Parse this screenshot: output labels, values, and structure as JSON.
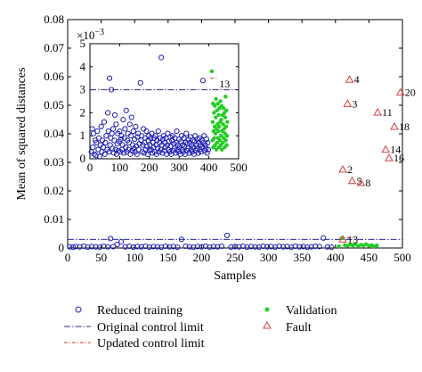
{
  "chart_data": {
    "type": "scatter",
    "main": {
      "xlabel": "Samples",
      "ylabel": "Mean of squared distances",
      "xlim": [
        0,
        500
      ],
      "ylim": [
        0,
        0.08
      ],
      "xticks": [
        "0",
        "50",
        "100",
        "150",
        "200",
        "250",
        "300",
        "350",
        "400",
        "450",
        "500"
      ],
      "yticks": [
        "0",
        "0.01",
        "0.02",
        "0.03",
        "0.04",
        "0.05",
        "0.06",
        "0.07",
        "0.08"
      ],
      "original_limit": 0.003,
      "updated_limit": 0.0035,
      "updated_limit_x": [
        405,
        430
      ],
      "reduced_training": [
        [
          3,
          0.0004
        ],
        [
          8,
          0.0003
        ],
        [
          12,
          0.0005
        ],
        [
          18,
          0.0004
        ],
        [
          24,
          0.0006
        ],
        [
          30,
          0.0003
        ],
        [
          36,
          0.0005
        ],
        [
          42,
          0.0004
        ],
        [
          48,
          0.0003
        ],
        [
          54,
          0.0006
        ],
        [
          60,
          0.0004
        ],
        [
          64,
          0.0033
        ],
        [
          68,
          0.0005
        ],
        [
          74,
          0.0012
        ],
        [
          80,
          0.0022
        ],
        [
          86,
          0.0004
        ],
        [
          92,
          0.0006
        ],
        [
          98,
          0.0003
        ],
        [
          104,
          0.0005
        ],
        [
          110,
          0.0004
        ],
        [
          116,
          0.0006
        ],
        [
          122,
          0.0003
        ],
        [
          128,
          0.0005
        ],
        [
          134,
          0.0004
        ],
        [
          140,
          0.0003
        ],
        [
          146,
          0.0006
        ],
        [
          152,
          0.0004
        ],
        [
          158,
          0.0005
        ],
        [
          164,
          0.0003
        ],
        [
          170,
          0.003
        ],
        [
          176,
          0.0006
        ],
        [
          182,
          0.0004
        ],
        [
          188,
          0.0003
        ],
        [
          194,
          0.0005
        ],
        [
          200,
          0.0004
        ],
        [
          206,
          0.0006
        ],
        [
          212,
          0.0003
        ],
        [
          218,
          0.0005
        ],
        [
          224,
          0.0004
        ],
        [
          230,
          0.0006
        ],
        [
          238,
          0.0044
        ],
        [
          244,
          0.0003
        ],
        [
          250,
          0.0005
        ],
        [
          256,
          0.0004
        ],
        [
          262,
          0.0006
        ],
        [
          268,
          0.0003
        ],
        [
          274,
          0.0005
        ],
        [
          280,
          0.0004
        ],
        [
          286,
          0.0003
        ],
        [
          292,
          0.0006
        ],
        [
          298,
          0.0004
        ],
        [
          304,
          0.0005
        ],
        [
          310,
          0.0003
        ],
        [
          316,
          0.0006
        ],
        [
          322,
          0.0004
        ],
        [
          328,
          0.0005
        ],
        [
          334,
          0.0003
        ],
        [
          340,
          0.0006
        ],
        [
          346,
          0.0004
        ],
        [
          352,
          0.0005
        ],
        [
          358,
          0.0003
        ],
        [
          364,
          0.0004
        ],
        [
          370,
          0.0006
        ],
        [
          376,
          0.0005
        ],
        [
          382,
          0.0035
        ],
        [
          388,
          0.0004
        ],
        [
          394,
          0.0003
        ]
      ],
      "validation": [
        [
          405,
          0.0006
        ],
        [
          410,
          0.0035
        ],
        [
          414,
          0.001
        ],
        [
          418,
          0.0008
        ],
        [
          422,
          0.0012
        ],
        [
          426,
          0.0009
        ],
        [
          430,
          0.0014
        ],
        [
          434,
          0.0007
        ],
        [
          438,
          0.0011
        ],
        [
          442,
          0.0009
        ],
        [
          446,
          0.0013
        ],
        [
          450,
          0.0008
        ],
        [
          454,
          0.001
        ],
        [
          458,
          0.0006
        ],
        [
          462,
          0.0009
        ]
      ],
      "fault": [
        {
          "x": 411,
          "y": 0.0275,
          "label": "2"
        },
        {
          "x": 418,
          "y": 0.0505,
          "label": "3"
        },
        {
          "x": 421,
          "y": 0.059,
          "label": "4"
        },
        {
          "x": 425,
          "y": 0.0235,
          "label": "5"
        },
        {
          "x": 438,
          "y": 0.0228,
          "label": "8"
        },
        {
          "x": 463,
          "y": 0.0475,
          "label": "11"
        },
        {
          "x": 411,
          "y": 0.003,
          "label": "13"
        },
        {
          "x": 475,
          "y": 0.0345,
          "label": "14"
        },
        {
          "x": 480,
          "y": 0.0315,
          "label": "16"
        },
        {
          "x": 488,
          "y": 0.0425,
          "label": "18"
        },
        {
          "x": 497,
          "y": 0.0545,
          "label": "20"
        }
      ]
    },
    "inset": {
      "multiplier": "×10",
      "exponent": "−3",
      "xlim": [
        0,
        500
      ],
      "ylim": [
        0,
        5
      ],
      "xticks": [
        "0",
        "100",
        "200",
        "300",
        "400",
        "500"
      ],
      "yticks": [
        "0",
        "1",
        "2",
        "3",
        "4",
        "5"
      ],
      "original_limit": 3.0,
      "updated_limit": 3.5,
      "updated_limit_x": [
        405,
        430
      ],
      "label_13": "13",
      "reduced_training": [
        [
          5,
          0.3
        ],
        [
          8,
          1.3
        ],
        [
          10,
          0.5
        ],
        [
          12,
          1.1
        ],
        [
          14,
          0.2
        ],
        [
          18,
          0.8
        ],
        [
          20,
          0.15
        ],
        [
          22,
          0.7
        ],
        [
          25,
          1.2
        ],
        [
          28,
          0.4
        ],
        [
          30,
          0.9
        ],
        [
          33,
          0.1
        ],
        [
          35,
          0.6
        ],
        [
          38,
          1.4
        ],
        [
          40,
          0.3
        ],
        [
          42,
          0.8
        ],
        [
          45,
          0.5
        ],
        [
          48,
          1.6
        ],
        [
          50,
          0.2
        ],
        [
          52,
          0.7
        ],
        [
          55,
          1.0
        ],
        [
          58,
          0.4
        ],
        [
          60,
          2.0
        ],
        [
          62,
          1.2
        ],
        [
          64,
          0.3
        ],
        [
          66,
          3.5
        ],
        [
          68,
          0.6
        ],
        [
          70,
          0.9
        ],
        [
          72,
          3.0
        ],
        [
          74,
          1.1
        ],
        [
          76,
          0.45
        ],
        [
          78,
          1.3
        ],
        [
          80,
          0.25
        ],
        [
          82,
          0.8
        ],
        [
          84,
          1.9
        ],
        [
          86,
          0.4
        ],
        [
          88,
          1.5
        ],
        [
          90,
          0.2
        ],
        [
          92,
          0.65
        ],
        [
          94,
          1.1
        ],
        [
          96,
          0.35
        ],
        [
          98,
          0.75
        ],
        [
          100,
          1.2
        ],
        [
          102,
          0.3
        ],
        [
          104,
          0.85
        ],
        [
          106,
          1.0
        ],
        [
          108,
          0.4
        ],
        [
          110,
          0.6
        ],
        [
          112,
          1.7
        ],
        [
          114,
          0.25
        ],
        [
          116,
          0.9
        ],
        [
          118,
          1.3
        ],
        [
          120,
          0.5
        ],
        [
          122,
          2.1
        ],
        [
          124,
          0.3
        ],
        [
          126,
          0.8
        ],
        [
          128,
          1.1
        ],
        [
          130,
          0.4
        ],
        [
          132,
          0.7
        ],
        [
          134,
          1.5
        ],
        [
          136,
          0.2
        ],
        [
          138,
          1.0
        ],
        [
          140,
          1.8
        ],
        [
          142,
          0.35
        ],
        [
          144,
          0.6
        ],
        [
          146,
          1.2
        ],
        [
          148,
          0.45
        ],
        [
          150,
          0.85
        ],
        [
          152,
          0.3
        ],
        [
          154,
          1.4
        ],
        [
          156,
          0.55
        ],
        [
          158,
          0.2
        ],
        [
          160,
          0.95
        ],
        [
          162,
          1.1
        ],
        [
          164,
          0.4
        ],
        [
          166,
          0.65
        ],
        [
          170,
          3.3
        ],
        [
          172,
          0.8
        ],
        [
          174,
          1.0
        ],
        [
          176,
          0.3
        ],
        [
          178,
          0.6
        ],
        [
          180,
          1.3
        ],
        [
          182,
          0.25
        ],
        [
          184,
          0.7
        ],
        [
          186,
          0.9
        ],
        [
          188,
          0.4
        ],
        [
          190,
          1.2
        ],
        [
          192,
          0.55
        ],
        [
          194,
          0.2
        ],
        [
          196,
          0.8
        ],
        [
          198,
          1.0
        ],
        [
          200,
          0.35
        ],
        [
          202,
          0.6
        ],
        [
          204,
          0.9
        ],
        [
          206,
          0.4
        ],
        [
          208,
          1.1
        ],
        [
          210,
          0.25
        ],
        [
          212,
          0.7
        ],
        [
          214,
          0.5
        ],
        [
          216,
          0.9
        ],
        [
          218,
          0.3
        ],
        [
          220,
          1.0
        ],
        [
          222,
          0.6
        ],
        [
          224,
          0.2
        ],
        [
          226,
          0.8
        ],
        [
          228,
          0.45
        ],
        [
          230,
          1.2
        ],
        [
          232,
          0.3
        ],
        [
          234,
          0.7
        ],
        [
          236,
          0.9
        ],
        [
          238,
          0.4
        ],
        [
          240,
          4.4
        ],
        [
          242,
          0.6
        ],
        [
          244,
          0.25
        ],
        [
          246,
          0.85
        ],
        [
          248,
          1.0
        ],
        [
          250,
          0.35
        ],
        [
          252,
          0.7
        ],
        [
          254,
          0.5
        ],
        [
          256,
          0.9
        ],
        [
          258,
          0.2
        ],
        [
          260,
          0.6
        ],
        [
          262,
          1.1
        ],
        [
          264,
          0.4
        ],
        [
          266,
          0.75
        ],
        [
          268,
          0.3
        ],
        [
          270,
          0.95
        ],
        [
          272,
          0.55
        ],
        [
          274,
          0.2
        ],
        [
          276,
          0.8
        ],
        [
          278,
          1.0
        ],
        [
          280,
          0.35
        ],
        [
          282,
          0.65
        ],
        [
          284,
          0.45
        ],
        [
          286,
          0.9
        ],
        [
          288,
          0.25
        ],
        [
          290,
          0.7
        ],
        [
          292,
          1.2
        ],
        [
          294,
          0.4
        ],
        [
          296,
          0.6
        ],
        [
          298,
          0.3
        ],
        [
          300,
          0.85
        ],
        [
          302,
          0.5
        ],
        [
          304,
          0.2
        ],
        [
          306,
          0.75
        ],
        [
          308,
          1.0
        ],
        [
          310,
          0.4
        ],
        [
          312,
          0.6
        ],
        [
          314,
          0.3
        ],
        [
          316,
          0.9
        ],
        [
          318,
          0.55
        ],
        [
          320,
          0.2
        ],
        [
          322,
          0.7
        ],
        [
          324,
          1.1
        ],
        [
          326,
          0.35
        ],
        [
          328,
          0.65
        ],
        [
          330,
          0.45
        ],
        [
          332,
          0.85
        ],
        [
          334,
          0.25
        ],
        [
          336,
          0.7
        ],
        [
          338,
          0.95
        ],
        [
          340,
          0.4
        ],
        [
          342,
          0.6
        ],
        [
          344,
          0.3
        ],
        [
          346,
          0.8
        ],
        [
          348,
          0.5
        ],
        [
          350,
          0.2
        ],
        [
          352,
          0.75
        ],
        [
          354,
          1.0
        ],
        [
          356,
          0.35
        ],
        [
          358,
          0.6
        ],
        [
          360,
          0.45
        ],
        [
          362,
          0.85
        ],
        [
          364,
          0.25
        ],
        [
          366,
          0.7
        ],
        [
          368,
          0.9
        ],
        [
          370,
          0.4
        ],
        [
          372,
          0.6
        ],
        [
          374,
          0.3
        ],
        [
          376,
          0.8
        ],
        [
          378,
          0.5
        ],
        [
          380,
          3.4
        ],
        [
          382,
          0.7
        ],
        [
          384,
          1.0
        ],
        [
          386,
          0.35
        ],
        [
          388,
          0.6
        ],
        [
          390,
          0.45
        ],
        [
          392,
          0.85
        ],
        [
          394,
          0.25
        ],
        [
          396,
          0.7
        ],
        [
          398,
          0.4
        ]
      ],
      "validation": [
        [
          410,
          3.8
        ],
        [
          412,
          0.8
        ],
        [
          413,
          1.6
        ],
        [
          414,
          2.4
        ],
        [
          415,
          0.5
        ],
        [
          416,
          1.2
        ],
        [
          417,
          2.0
        ],
        [
          418,
          0.9
        ],
        [
          419,
          1.4
        ],
        [
          420,
          2.3
        ],
        [
          421,
          0.6
        ],
        [
          422,
          1.1
        ],
        [
          423,
          1.8
        ],
        [
          424,
          2.6
        ],
        [
          425,
          0.4
        ],
        [
          426,
          1.3
        ],
        [
          427,
          2.1
        ],
        [
          428,
          0.7
        ],
        [
          429,
          1.5
        ],
        [
          430,
          2.4
        ],
        [
          431,
          0.9
        ],
        [
          432,
          1.2
        ],
        [
          433,
          1.9
        ],
        [
          434,
          0.5
        ],
        [
          435,
          1.4
        ],
        [
          436,
          2.2
        ],
        [
          437,
          0.8
        ],
        [
          438,
          1.6
        ],
        [
          439,
          2.5
        ],
        [
          440,
          0.6
        ],
        [
          441,
          1.0
        ],
        [
          442,
          1.7
        ],
        [
          443,
          2.3
        ],
        [
          444,
          0.4
        ],
        [
          445,
          1.2
        ],
        [
          446,
          1.9
        ],
        [
          447,
          0.7
        ],
        [
          448,
          1.5
        ],
        [
          449,
          2.2
        ],
        [
          450,
          0.9
        ],
        [
          451,
          1.3
        ],
        [
          452,
          2.0
        ],
        [
          453,
          0.5
        ],
        [
          454,
          1.1
        ],
        [
          455,
          1.8
        ],
        [
          456,
          2.7
        ],
        [
          457,
          0.8
        ],
        [
          458,
          1.4
        ],
        [
          459,
          2.1
        ],
        [
          460,
          0.6
        ],
        [
          461,
          1.0
        ],
        [
          462,
          1.6
        ]
      ]
    },
    "legend": {
      "reduced_training": "Reduced training",
      "validation": "Validation",
      "original_limit": "Original control limit",
      "fault": "Fault",
      "updated_limit": "Updated control limit"
    },
    "colors": {
      "reduced_training": "#1f1fb4",
      "validation": "#22cc22",
      "fault": "#d04040",
      "original_limit": "#2a2a9a",
      "updated_limit": "#cc3333"
    }
  }
}
